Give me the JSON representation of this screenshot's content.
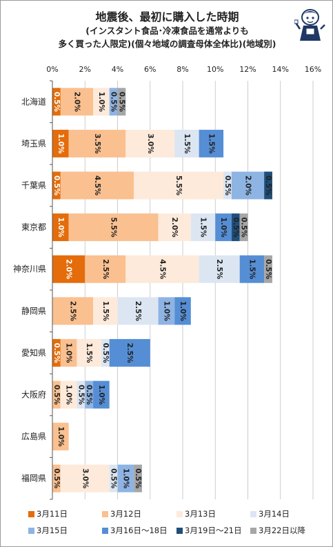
{
  "title": "地震後、最初に購入した時期",
  "subtitle_line1": "(インスタント食品･冷凍食品を通常よりも",
  "subtitle_line2": "多く買った人限定)(個々地域の調査母体全体比)(地域別)",
  "mascot_icon": "girl-mascot-icon",
  "chart_data": {
    "type": "bar",
    "orientation": "horizontal",
    "stacked": true,
    "title": "地震後、最初に購入した時期",
    "xlim": [
      0,
      16
    ],
    "x_ticks": [
      "0%",
      "2%",
      "4%",
      "6%",
      "8%",
      "10%",
      "12%",
      "14%",
      "16%"
    ],
    "grid": true,
    "legend_position": "bottom",
    "categories": [
      "北海道",
      "埼玉県",
      "千葉県",
      "東京都",
      "神奈川県",
      "静岡県",
      "愛知県",
      "大阪府",
      "広島県",
      "福岡県"
    ],
    "series": [
      {
        "name": "3月11日",
        "color": "#e46c0a",
        "label_color": "#ffffff",
        "values": [
          0.5,
          1.0,
          0.5,
          1.0,
          2.0,
          0,
          0.5,
          0,
          0,
          0
        ]
      },
      {
        "name": "3月12日",
        "color": "#fac090",
        "label_color": "#222222",
        "values": [
          2.0,
          3.5,
          4.5,
          5.5,
          2.5,
          2.5,
          1.0,
          0.5,
          1.0,
          0.5
        ]
      },
      {
        "name": "3月13日",
        "color": "#fdeada",
        "label_color": "#222222",
        "values": [
          1.0,
          3.0,
          5.5,
          2.0,
          4.5,
          1.5,
          1.5,
          1.0,
          0,
          3.0
        ]
      },
      {
        "name": "3月14日",
        "color": "#dce6f2",
        "label_color": "#222222",
        "values": [
          0,
          1.5,
          0.5,
          1.5,
          2.5,
          2.5,
          0.5,
          0.5,
          0,
          0.5
        ]
      },
      {
        "name": "3月15日",
        "color": "#8eb4e3",
        "label_color": "#222222",
        "values": [
          0.5,
          0,
          2.0,
          0,
          0,
          1.0,
          0,
          0.5,
          0,
          1.0
        ]
      },
      {
        "name": "3月16日～18日",
        "color": "#558ed5",
        "label_color": "#222222",
        "values": [
          0,
          1.5,
          0,
          1.0,
          1.5,
          1.0,
          2.5,
          1.0,
          0,
          0
        ]
      },
      {
        "name": "3月19日～21日",
        "color": "#1f4e79",
        "label_color": "#222222",
        "values": [
          0,
          0,
          0.5,
          0.5,
          0,
          0,
          0,
          0,
          0,
          0
        ]
      },
      {
        "name": "3月22日以降",
        "color": "#a6a6a6",
        "label_color": "#222222",
        "values": [
          0.5,
          0,
          0,
          0.5,
          0.5,
          0,
          0,
          0,
          0,
          0.5
        ]
      }
    ]
  }
}
